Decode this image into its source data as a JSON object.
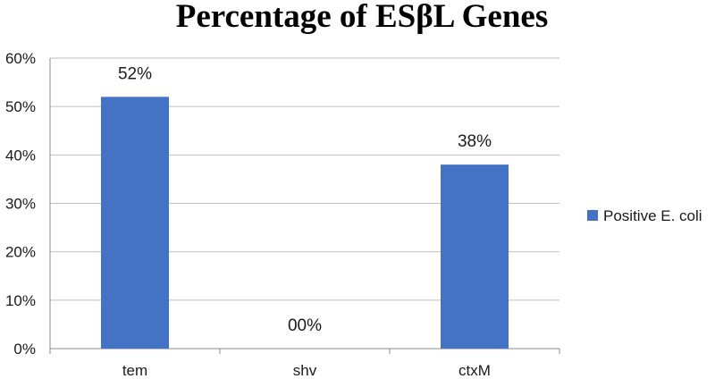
{
  "chart_data": {
    "type": "bar",
    "title": "Percentage of ESβL Genes",
    "categories": [
      "tem",
      "shv",
      "ctxM"
    ],
    "series": [
      {
        "name": "Positive E. coli",
        "values": [
          52,
          0,
          38
        ]
      }
    ],
    "data_labels": [
      "52%",
      "00%",
      "38%"
    ],
    "y_ticks": [
      "0%",
      "10%",
      "20%",
      "30%",
      "40%",
      "50%",
      "60%"
    ],
    "ylim": [
      0,
      60
    ],
    "xlabel": "",
    "ylabel": "",
    "grid": true,
    "legend_position": "right"
  },
  "colors": {
    "bar": "#4472c4",
    "grid": "#bfbfbf",
    "axis": "#8c8c8c"
  }
}
